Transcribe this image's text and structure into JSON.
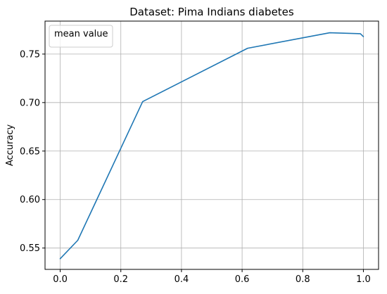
{
  "chart_data": {
    "type": "line",
    "title": "Dataset: Pima Indians diabetes",
    "xlabel": "",
    "ylabel": "Accuracy",
    "xlim": [
      -0.05,
      1.05
    ],
    "ylim": [
      0.528,
      0.784
    ],
    "xticks": [
      0.0,
      0.2,
      0.4,
      0.6,
      0.8,
      1.0
    ],
    "xtick_labels": [
      "0.0",
      "0.2",
      "0.4",
      "0.6",
      "0.8",
      "1.0"
    ],
    "yticks": [
      0.55,
      0.6,
      0.65,
      0.7,
      0.75
    ],
    "ytick_labels": [
      "0.55",
      "0.60",
      "0.65",
      "0.70",
      "0.75"
    ],
    "grid": true,
    "legend_position": "top-left",
    "series": [
      {
        "name": "mean value",
        "color": "#1f77b4",
        "x": [
          0.0,
          0.058,
          0.272,
          0.618,
          0.889,
          0.99,
          1.0
        ],
        "y": [
          0.539,
          0.558,
          0.701,
          0.756,
          0.772,
          0.771,
          0.768
        ]
      }
    ]
  }
}
